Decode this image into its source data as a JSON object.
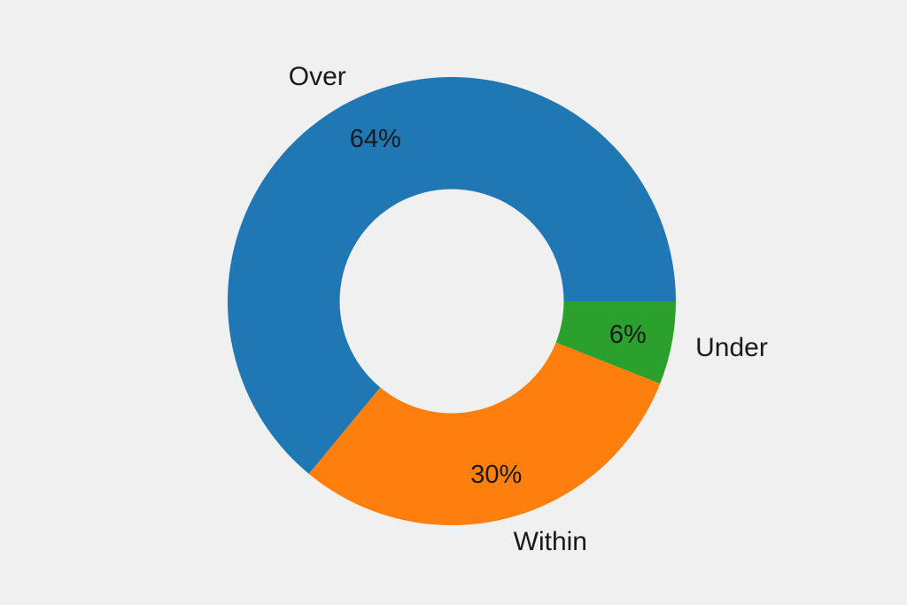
{
  "background_color": "#f0f0f0",
  "text_color": "#1a1a1a",
  "chart_data": {
    "type": "pie",
    "subtype": "donut",
    "title": "",
    "categories": [
      "Over",
      "Within",
      "Under"
    ],
    "values": [
      64,
      30,
      6
    ],
    "value_labels": [
      "64%",
      "30%",
      "6%"
    ],
    "colors": [
      "#1f77b4",
      "#ff7f0e",
      "#2ca02c"
    ],
    "start_angle_deg": 0,
    "direction": "counterclockwise",
    "inner_radius_ratio": 0.5,
    "label_distance": 1.107,
    "pct_distance": 0.8,
    "legend": "none",
    "grid": false
  }
}
